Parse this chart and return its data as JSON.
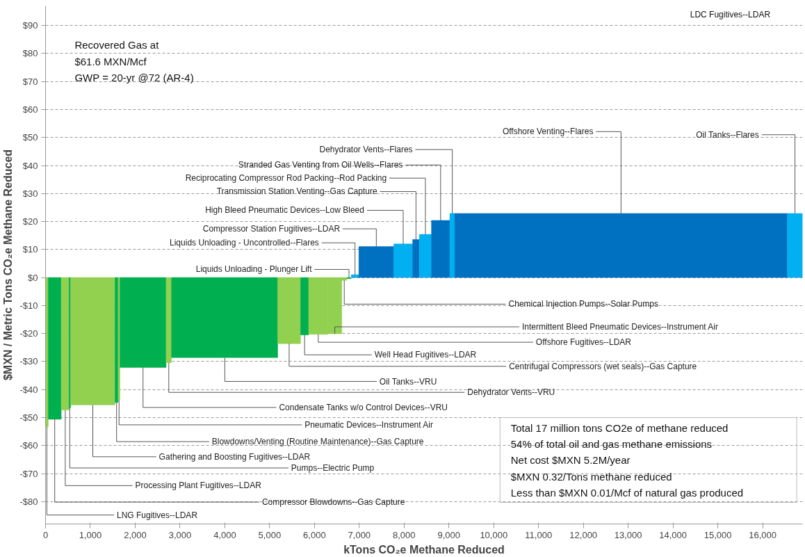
{
  "chart_data": {
    "type": "histogram",
    "xlabel": "kTons CO₂e Methane Reduced",
    "ylabel": "$MXN / Metric Tons CO₂e Methane Reduced",
    "bins": [
      0,
      60,
      350,
      525,
      560,
      1550,
      1620,
      1660,
      2690,
      2810,
      5180,
      5690,
      5870,
      6300,
      6610,
      6720,
      6820,
      6990,
      7770,
      8190,
      8340,
      8610,
      9020,
      9130,
      16550,
      16890
    ],
    "values": [
      -53.3,
      -50.6,
      -47.3,
      -46.5,
      -45.5,
      -44.6,
      -43.8,
      -32.1,
      -30.4,
      -28.6,
      -23.6,
      -20.5,
      -20.3,
      -20.1,
      -1.0,
      -0.4,
      1.0,
      11.1,
      12.0,
      13.6,
      15.4,
      20.4,
      22.9,
      22.9,
      22.9
    ],
    "colors": [
      "#92d050",
      "#00b050",
      "#92d050",
      "#00b050",
      "#92d050",
      "#00b050",
      "#92d050",
      "#00b050",
      "#92d050",
      "#00b050",
      "#92d050",
      "#00b050",
      "#92d050",
      "#92d050",
      "#92d050",
      "#00b050",
      "#00b0f0",
      "#0070c0",
      "#00b0f0",
      "#0070c0",
      "#00b0f0",
      "#0070c0",
      "#00b0f0",
      "#0070c0",
      "#00b0f0"
    ],
    "xlim": [
      0,
      16890
    ],
    "ylim": [
      -88,
      97
    ],
    "xticks": [
      0,
      {
        "value": 1000,
        "label": "1,000"
      },
      {
        "value": 2000,
        "label": "2,000"
      },
      {
        "value": 3000,
        "label": "3,000"
      },
      {
        "value": 4000,
        "label": "4,000"
      },
      {
        "value": 5000,
        "label": "5,000"
      },
      {
        "value": 6000,
        "label": "6,000"
      },
      {
        "value": 7000,
        "label": "7,000"
      },
      {
        "value": 8000,
        "label": "8,000"
      },
      {
        "value": 9000,
        "label": "9,000"
      },
      {
        "value": 10000,
        "label": "10,000"
      },
      {
        "value": 11000,
        "label": "11,000"
      },
      {
        "value": 12000,
        "label": "12,000"
      },
      {
        "value": 13000,
        "label": "13,000"
      },
      {
        "value": 14000,
        "label": "14,000"
      },
      {
        "value": 15000,
        "label": "15,000"
      },
      {
        "value": 16000,
        "label": "16,000"
      }
    ],
    "yticks": [
      {
        "value": -80,
        "label": "-$80"
      },
      {
        "value": -70,
        "label": "-$70"
      },
      {
        "value": -60,
        "label": "-$60"
      },
      {
        "value": -50,
        "label": "-$50"
      },
      {
        "value": -40,
        "label": "-$40"
      },
      {
        "value": -30,
        "label": "-$30"
      },
      {
        "value": -20,
        "label": "-$20"
      },
      {
        "value": -10,
        "label": "-$10"
      },
      {
        "value": 0,
        "label": "$0"
      },
      {
        "value": 10,
        "label": "$10"
      },
      {
        "value": 20,
        "label": "$20"
      },
      {
        "value": 30,
        "label": "$30"
      },
      {
        "value": 40,
        "label": "$40"
      },
      {
        "value": 50,
        "label": "$50"
      },
      {
        "value": 60,
        "label": "$60"
      },
      {
        "value": 70,
        "label": "$70"
      },
      {
        "value": 80,
        "label": "$80"
      },
      {
        "value": 90,
        "label": "$90"
      }
    ],
    "grid": "y",
    "annotations": [
      {
        "text": "LNG Fugitives--LDAR",
        "x": 30,
        "y": -53.3
      },
      {
        "text": "Compressor Blowdowns--Gas Capture",
        "x": 205,
        "y": -50.6
      },
      {
        "text": "Processing Plant Fugitives--LDAR",
        "x": 440,
        "y": -47.3
      },
      {
        "text": "Pumps--Electric Pump",
        "x": 540,
        "y": -46.5
      },
      {
        "text": "Gathering and Boosting Fugitives--LDAR",
        "x": 1055,
        "y": -45.5
      },
      {
        "text": "Blowdowns/Venting (Routine Maintenance)--Gas Capture",
        "x": 1585,
        "y": -44.6
      },
      {
        "text": "Pneumatic Devices--Instrument Air",
        "x": 1640,
        "y": -43.8
      },
      {
        "text": "Condensate Tanks w/o Control Devices--VRU",
        "x": 2175,
        "y": -32.1
      },
      {
        "text": "Dehydrator Vents--VRU",
        "x": 2750,
        "y": -30.4
      },
      {
        "text": "Oil Tanks--VRU",
        "x": 4000,
        "y": -28.6
      },
      {
        "text": "Centrifugal Compressors (wet seals)--Gas Capture",
        "x": 5435,
        "y": -23.6
      },
      {
        "text": "Well Head Fugitives--LDAR",
        "x": 5780,
        "y": -20.5
      },
      {
        "text": "Offshore Fugitives--LDAR",
        "x": 6085,
        "y": -20.3
      },
      {
        "text": "Intermittent Bleed Pneumatic Devices--Instrument Air",
        "x": 6455,
        "y": -20.1
      },
      {
        "text": "Chemical Injection Pumps--Solar Pumps",
        "x": 6665,
        "y": -1.0
      },
      {
        "text": "Liquids Unloading - Plunger Lift",
        "x": 6770,
        "y": -0.4
      },
      {
        "text": "Liquids Unloading - Uncontrolled--Flares",
        "x": 6905,
        "y": 1.0
      },
      {
        "text": "Compressor Station Fugitives--LDAR",
        "x": 7380,
        "y": 11.1
      },
      {
        "text": "High Bleed Pneumatic Devices--Low Bleed",
        "x": 7980,
        "y": 12.0
      },
      {
        "text": "Transmission Station Venting--Gas Capture",
        "x": 8265,
        "y": 13.6
      },
      {
        "text": "Reciprocating Compressor Rod Packing--Rod Packing",
        "x": 8475,
        "y": 15.4
      },
      {
        "text": "Stranded Gas Venting from Oil Wells--Flares",
        "x": 8815,
        "y": 20.4
      },
      {
        "text": "Dehydrator Vents--Flares",
        "x": 9075,
        "y": 22.9
      },
      {
        "text": "Offshore Venting--Flares",
        "x": 12840,
        "y": 22.9
      },
      {
        "text": "Oil Tanks--Flares",
        "x": 16720,
        "y": 22.9
      },
      "Recovered Gas at",
      "$61.6 MXN/Mcf",
      "GWP = 20-yr @72 (AR-4)",
      "Total 17 million tons CO2e of methane reduced",
      "54% of total oil and gas methane emissions",
      "Net cost $MXN 5.2M/year",
      "$MXN 0.32/Tons methane reduced",
      "Less than $MXN 0.01/Mcf of natural gas produced",
      "LDC Fugitives--LDAR"
    ]
  }
}
